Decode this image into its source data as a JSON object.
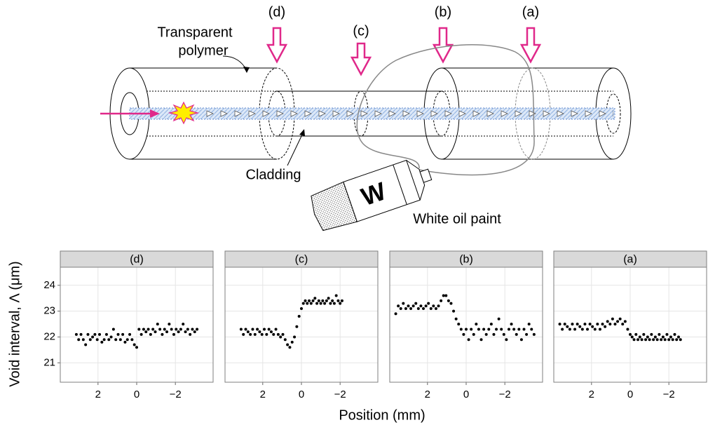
{
  "diagram": {
    "markers": [
      "(d)",
      "(c)",
      "(b)",
      "(a)"
    ],
    "polymer_label": [
      "Transparent",
      "polymer"
    ],
    "cladding_label": "Cladding",
    "paint_label": "White oil paint",
    "tube_letter": "W"
  },
  "axis_labels": {
    "x": "Position (mm)",
    "y": "Void interval, Λ (μm)"
  },
  "chart_data": [
    {
      "type": "scatter",
      "title": "(d)",
      "color": "#000000",
      "grid": true,
      "xlim": [
        3.95,
        -3.95
      ],
      "ylim": [
        20.25,
        24.7
      ],
      "xticks": [
        2,
        0,
        {
          "value": -2,
          "label": "−2"
        }
      ],
      "yticks": [
        21,
        22,
        23,
        24
      ],
      "x": [
        3.12,
        3.0,
        2.88,
        2.76,
        2.64,
        2.52,
        2.4,
        2.28,
        2.16,
        2.04,
        1.92,
        1.8,
        1.68,
        1.56,
        1.44,
        1.32,
        1.2,
        1.08,
        0.96,
        0.84,
        0.72,
        0.6,
        0.48,
        0.36,
        0.24,
        0.12,
        0,
        -0.12,
        -0.24,
        -0.36,
        -0.48,
        -0.6,
        -0.72,
        -0.84,
        -0.96,
        -1.08,
        -1.2,
        -1.32,
        -1.44,
        -1.56,
        -1.68,
        -1.8,
        -1.92,
        -2.04,
        -2.16,
        -2.28,
        -2.4,
        -2.52,
        -2.64,
        -2.76,
        -2.88,
        -3.0,
        -3.12
      ],
      "y": [
        22.1,
        21.9,
        22.1,
        21.9,
        21.7,
        22.1,
        21.9,
        22.0,
        22.1,
        21.9,
        22.1,
        21.8,
        21.9,
        22.1,
        21.9,
        22.0,
        22.3,
        21.9,
        22.1,
        21.9,
        22.1,
        21.8,
        21.9,
        22.1,
        21.9,
        21.7,
        21.6,
        22.3,
        22.1,
        22.3,
        22.2,
        22.3,
        22.1,
        22.3,
        22.2,
        22.5,
        22.3,
        22.1,
        22.3,
        22.2,
        22.5,
        22.3,
        22.1,
        22.3,
        22.2,
        22.3,
        22.5,
        22.2,
        22.3,
        22.1,
        22.3,
        22.2,
        22.3
      ]
    },
    {
      "type": "scatter",
      "title": "(c)",
      "color": "#000000",
      "grid": true,
      "xlim": [
        3.95,
        -3.95
      ],
      "ylim": [
        20.25,
        24.7
      ],
      "xticks": [
        2,
        0,
        {
          "value": -2,
          "label": "−2"
        }
      ],
      "yticks": [
        21,
        22,
        23,
        24
      ],
      "x": [
        3.12,
        3.0,
        2.88,
        2.76,
        2.64,
        2.52,
        2.4,
        2.28,
        2.16,
        2.04,
        1.92,
        1.8,
        1.68,
        1.56,
        1.44,
        1.32,
        1.2,
        1.08,
        0.96,
        0.84,
        0.72,
        0.6,
        0.48,
        0.36,
        0.24,
        0.12,
        0,
        -0.1,
        -0.2,
        -0.3,
        -0.4,
        -0.5,
        -0.6,
        -0.7,
        -0.8,
        -0.9,
        -1.0,
        -1.1,
        -1.2,
        -1.3,
        -1.4,
        -1.5,
        -1.6,
        -1.7,
        -1.8,
        -1.9,
        -2.0,
        -2.1
      ],
      "y": [
        22.3,
        22.1,
        22.3,
        22.2,
        22.1,
        22.3,
        22.1,
        22.3,
        22.2,
        22.1,
        22.3,
        22.1,
        22.3,
        22.2,
        22.1,
        22.3,
        22.1,
        22.0,
        22.1,
        21.9,
        21.7,
        21.6,
        21.8,
        22.0,
        22.4,
        22.8,
        23.1,
        23.3,
        23.4,
        23.3,
        23.4,
        23.3,
        23.4,
        23.5,
        23.3,
        23.4,
        23.3,
        23.4,
        23.3,
        23.4,
        23.5,
        23.3,
        23.4,
        23.3,
        23.6,
        23.4,
        23.3,
        23.4
      ]
    },
    {
      "type": "scatter",
      "title": "(b)",
      "color": "#000000",
      "grid": true,
      "xlim": [
        3.95,
        -3.95
      ],
      "ylim": [
        20.25,
        24.7
      ],
      "xticks": [
        2,
        0,
        {
          "value": -2,
          "label": "−2"
        }
      ],
      "yticks": [
        21,
        22,
        23,
        24
      ],
      "x": [
        3.64,
        3.51,
        3.38,
        3.25,
        3.12,
        2.99,
        2.86,
        2.73,
        2.6,
        2.47,
        2.34,
        2.21,
        2.08,
        1.95,
        1.82,
        1.69,
        1.56,
        1.43,
        1.3,
        1.17,
        1.04,
        0.91,
        0.78,
        0.65,
        0.52,
        0.39,
        0.26,
        0.13,
        0,
        -0.13,
        -0.26,
        -0.39,
        -0.52,
        -0.65,
        -0.78,
        -0.91,
        -1.04,
        -1.17,
        -1.3,
        -1.43,
        -1.56,
        -1.69,
        -1.82,
        -1.95,
        -2.08,
        -2.21,
        -2.34,
        -2.47,
        -2.6,
        -2.73,
        -2.86,
        -2.99,
        -3.12,
        -3.25,
        -3.38,
        -3.51
      ],
      "y": [
        22.9,
        23.2,
        23.1,
        23.3,
        23.1,
        23.2,
        23.1,
        23.2,
        23.3,
        23.1,
        23.2,
        23.1,
        23.2,
        23.3,
        23.1,
        23.2,
        23.1,
        23.2,
        23.4,
        23.6,
        23.6,
        23.4,
        23.3,
        23.0,
        22.7,
        22.5,
        22.3,
        22.1,
        22.3,
        21.9,
        22.3,
        22.1,
        22.5,
        22.3,
        21.9,
        22.3,
        22.1,
        22.3,
        22.5,
        22.1,
        22.3,
        22.7,
        22.3,
        22.1,
        21.9,
        22.3,
        22.5,
        22.3,
        22.1,
        22.3,
        21.9,
        22.3,
        22.1,
        22.5,
        22.3,
        22.1
      ]
    },
    {
      "type": "scatter",
      "title": "(a)",
      "color": "#000000",
      "grid": true,
      "xlim": [
        3.95,
        -3.95
      ],
      "ylim": [
        20.25,
        24.7
      ],
      "xticks": [
        2,
        0,
        {
          "value": -2,
          "label": "−2"
        }
      ],
      "yticks": [
        21,
        22,
        23,
        24
      ],
      "x": [
        3.64,
        3.51,
        3.38,
        3.25,
        3.12,
        2.99,
        2.86,
        2.73,
        2.6,
        2.47,
        2.34,
        2.21,
        2.08,
        1.95,
        1.82,
        1.69,
        1.56,
        1.43,
        1.3,
        1.17,
        1.04,
        0.91,
        0.78,
        0.65,
        0.52,
        0.39,
        0.26,
        0.13,
        0,
        -0.1,
        -0.2,
        -0.3,
        -0.4,
        -0.5,
        -0.6,
        -0.7,
        -0.8,
        -0.9,
        -1.0,
        -1.1,
        -1.2,
        -1.3,
        -1.4,
        -1.5,
        -1.6,
        -1.7,
        -1.8,
        -1.9,
        -2.0,
        -2.1,
        -2.2,
        -2.3,
        -2.4,
        -2.5,
        -2.6
      ],
      "y": [
        22.5,
        22.3,
        22.5,
        22.4,
        22.3,
        22.5,
        22.3,
        22.5,
        22.4,
        22.3,
        22.5,
        22.3,
        22.5,
        22.4,
        22.3,
        22.5,
        22.3,
        22.5,
        22.4,
        22.6,
        22.5,
        22.7,
        22.5,
        22.6,
        22.7,
        22.5,
        22.6,
        22.3,
        22.1,
        22.0,
        21.9,
        22.1,
        21.9,
        22.0,
        21.9,
        22.1,
        21.9,
        22.0,
        21.9,
        22.1,
        21.9,
        22.0,
        21.9,
        22.1,
        21.9,
        22.0,
        21.9,
        22.1,
        21.9,
        22.0,
        21.9,
        22.1,
        21.9,
        22.0,
        21.9
      ]
    }
  ]
}
